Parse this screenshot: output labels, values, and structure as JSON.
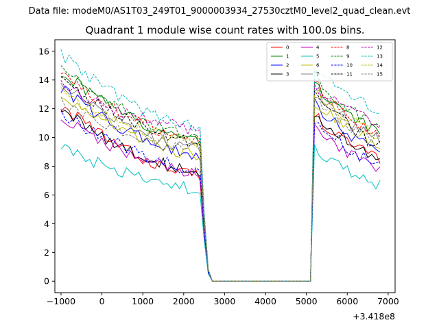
{
  "suptitle": "Data file: modeM0/AS1T03_249T01_9000003934_27530cztM0_level2_quad_clean.evt",
  "chart_data": {
    "type": "line",
    "title": "Quadrant 1 module wise count rates with 100.0s bins.",
    "xlabel": "",
    "ylabel": "",
    "x_offset_label": "+3.418e8",
    "xlim": [
      -1150,
      7170
    ],
    "ylim": [
      -0.8,
      16.8
    ],
    "xticks": [
      -1000,
      0,
      1000,
      2000,
      3000,
      4000,
      5000,
      6000,
      7000
    ],
    "yticks": [
      0,
      2,
      4,
      6,
      8,
      10,
      12,
      14,
      16
    ],
    "legend_position": "top-right",
    "grid": false,
    "series": [
      {
        "name": "0",
        "color": "#ff0000",
        "style": "solid",
        "start": 12.2,
        "end_first": 7.4,
        "start_second": 11.6,
        "end_second": 8.5
      },
      {
        "name": "1",
        "color": "#008000",
        "style": "solid",
        "start": 14.6,
        "end_first": 9.8,
        "start_second": 13.8,
        "end_second": 10.4
      },
      {
        "name": "2",
        "color": "#0000ff",
        "style": "solid",
        "start": 13.4,
        "end_first": 8.8,
        "start_second": 12.4,
        "end_second": 9.0
      },
      {
        "name": "3",
        "color": "#000000",
        "style": "solid",
        "start": 12.0,
        "end_first": 7.6,
        "start_second": 11.8,
        "end_second": 8.4
      },
      {
        "name": "4",
        "color": "#bf00bf",
        "style": "solid",
        "start": 11.4,
        "end_first": 7.5,
        "start_second": 11.0,
        "end_second": 7.7
      },
      {
        "name": "5",
        "color": "#00bfbf",
        "style": "solid",
        "start": 9.3,
        "end_first": 6.4,
        "start_second": 9.3,
        "end_second": 6.6
      },
      {
        "name": "6",
        "color": "#bfbf00",
        "style": "solid",
        "start": 12.8,
        "end_first": 8.8,
        "start_second": 12.6,
        "end_second": 9.6
      },
      {
        "name": "7",
        "color": "#808080",
        "style": "solid",
        "start": 13.8,
        "end_first": 9.2,
        "start_second": 13.4,
        "end_second": 9.8
      },
      {
        "name": "8",
        "color": "#ff0000",
        "style": "dashed",
        "start": 14.4,
        "end_first": 9.8,
        "start_second": 13.9,
        "end_second": 10.1
      },
      {
        "name": "9",
        "color": "#008000",
        "style": "dashed",
        "start": 14.9,
        "end_first": 10.0,
        "start_second": 14.3,
        "end_second": 10.7
      },
      {
        "name": "10",
        "color": "#0000ff",
        "style": "dashed",
        "start": 11.8,
        "end_first": 7.8,
        "start_second": 11.3,
        "end_second": 8.1
      },
      {
        "name": "11",
        "color": "#000000",
        "style": "dashed",
        "start": 14.0,
        "end_first": 9.6,
        "start_second": 13.3,
        "end_second": 9.4
      },
      {
        "name": "12",
        "color": "#bf00bf",
        "style": "dashed",
        "start": 13.7,
        "end_first": 10.6,
        "start_second": 13.5,
        "end_second": 11.0
      },
      {
        "name": "13",
        "color": "#00bfbf",
        "style": "dashed",
        "start": 15.8,
        "end_first": 10.8,
        "start_second": 15.1,
        "end_second": 11.9
      },
      {
        "name": "14",
        "color": "#bfbf00",
        "style": "dashed",
        "start": 13.1,
        "end_first": 9.7,
        "start_second": 13.1,
        "end_second": 10.2
      },
      {
        "name": "15",
        "color": "#808080",
        "style": "dashed",
        "start": 12.4,
        "end_first": 9.2,
        "start_second": 12.7,
        "end_second": 9.9
      }
    ]
  }
}
